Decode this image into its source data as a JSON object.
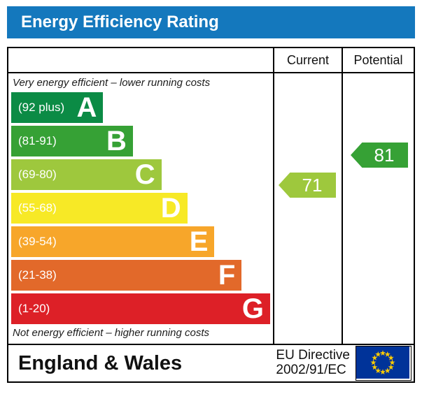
{
  "title": "Energy Efficiency Rating",
  "columns": {
    "current": "Current",
    "potential": "Potential"
  },
  "top_note": "Very energy efficient – lower running costs",
  "bottom_note": "Not energy efficient – higher running costs",
  "bands": [
    {
      "letter": "A",
      "range": "(92 plus)",
      "color": "#0b8b45",
      "width_pct": 35.5
    },
    {
      "letter": "B",
      "range": "(81-91)",
      "color": "#36a135",
      "width_pct": 47
    },
    {
      "letter": "C",
      "range": "(69-80)",
      "color": "#9ec83d",
      "width_pct": 58
    },
    {
      "letter": "D",
      "range": "(55-68)",
      "color": "#f7e926",
      "width_pct": 68
    },
    {
      "letter": "E",
      "range": "(39-54)",
      "color": "#f7a62a",
      "width_pct": 78.5
    },
    {
      "letter": "F",
      "range": "(21-38)",
      "color": "#e2692a",
      "width_pct": 89
    },
    {
      "letter": "G",
      "range": "(1-20)",
      "color": "#dd2027",
      "width_pct": 100
    }
  ],
  "ratings": {
    "current": {
      "value": "71",
      "color": "#9ec83d",
      "band": "C"
    },
    "potential": {
      "value": "81",
      "color": "#36a135",
      "band": "B"
    }
  },
  "footer": {
    "region": "England & Wales",
    "directive_line1": "EU Directive",
    "directive_line2": "2002/91/EC",
    "flag_colors": {
      "field": "#003399",
      "stars": "#ffcc00"
    }
  },
  "chart_data": {
    "type": "bar",
    "title": "Energy Efficiency Rating",
    "categories": [
      "A",
      "B",
      "C",
      "D",
      "E",
      "F",
      "G"
    ],
    "band_ranges": [
      "92 plus",
      "81-91",
      "69-80",
      "55-68",
      "39-54",
      "21-38",
      "1-20"
    ],
    "band_widths_pct": [
      35.5,
      47,
      58,
      68,
      78.5,
      89,
      100
    ],
    "series": [
      {
        "name": "Current",
        "values": [
          71
        ],
        "band": "C"
      },
      {
        "name": "Potential",
        "values": [
          81
        ],
        "band": "B"
      }
    ],
    "xlabel": "",
    "ylabel": "",
    "value_scale": [
      1,
      100
    ],
    "annotations": [
      "Very energy efficient – lower running costs",
      "Not energy efficient – higher running costs",
      "England & Wales",
      "EU Directive 2002/91/EC"
    ]
  }
}
